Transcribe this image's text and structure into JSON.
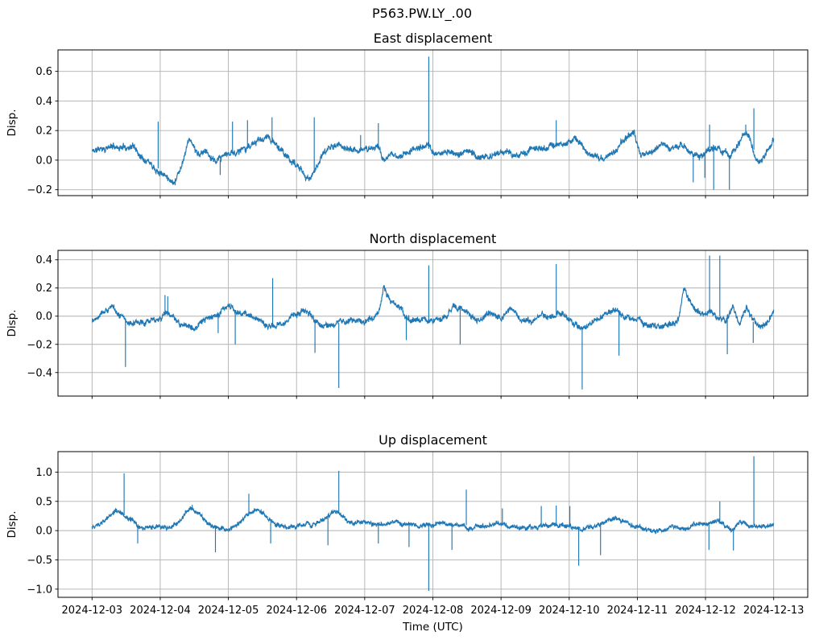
{
  "figure": {
    "title": "P563.PW.LY_.00",
    "background": "#ffffff"
  },
  "style": {
    "line_color": "#1f77b4",
    "grid_color": "#b0b0b0",
    "spine_color": "#000000",
    "text_color": "#000000"
  },
  "x_axis": {
    "label": "Time (UTC)",
    "tick_labels": [
      "2024-12-03",
      "2024-12-04",
      "2024-12-05",
      "2024-12-06",
      "2024-12-07",
      "2024-12-08",
      "2024-12-09",
      "2024-12-10",
      "2024-12-11",
      "2024-12-12",
      "2024-12-13"
    ],
    "tick_days": [
      3,
      4,
      5,
      6,
      7,
      8,
      9,
      10,
      11,
      12,
      13
    ],
    "xlim_days": [
      2.5,
      13.5
    ]
  },
  "chart_data": [
    {
      "type": "line",
      "title": "East displacement",
      "ylabel": "Disp.",
      "grid": true,
      "legend": null,
      "ytick_values": [
        -0.2,
        0.0,
        0.2,
        0.4,
        0.6
      ],
      "ytick_labels": [
        "−0.2",
        "0.0",
        "0.2",
        "0.4",
        "0.6"
      ],
      "ylim": [
        -0.24,
        0.745
      ],
      "noise_amp": 0.021,
      "seed": 11,
      "baseline": [
        [
          3.0,
          0.06
        ],
        [
          3.15,
          0.08
        ],
        [
          3.3,
          0.09
        ],
        [
          3.45,
          0.09
        ],
        [
          3.6,
          0.1
        ],
        [
          3.7,
          0.04
        ],
        [
          3.85,
          0.0
        ],
        [
          4.0,
          -0.07
        ],
        [
          4.2,
          -0.14
        ],
        [
          4.3,
          -0.05
        ],
        [
          4.42,
          0.15
        ],
        [
          4.5,
          0.08
        ],
        [
          4.58,
          0.02
        ],
        [
          4.66,
          0.07
        ],
        [
          4.82,
          -0.03
        ],
        [
          4.95,
          0.03
        ],
        [
          5.1,
          0.05
        ],
        [
          5.25,
          0.09
        ],
        [
          5.45,
          0.12
        ],
        [
          5.6,
          0.15
        ],
        [
          5.72,
          0.09
        ],
        [
          5.85,
          0.02
        ],
        [
          6.0,
          -0.04
        ],
        [
          6.2,
          -0.13
        ],
        [
          6.33,
          0.0
        ],
        [
          6.45,
          0.08
        ],
        [
          6.6,
          0.1
        ],
        [
          6.75,
          0.08
        ],
        [
          6.9,
          0.05
        ],
        [
          7.05,
          0.08
        ],
        [
          7.2,
          0.1
        ],
        [
          7.28,
          0.0
        ],
        [
          7.4,
          0.02
        ],
        [
          7.55,
          0.03
        ],
        [
          7.7,
          0.08
        ],
        [
          7.8,
          0.09
        ],
        [
          7.93,
          0.08
        ],
        [
          8.05,
          0.04
        ],
        [
          8.2,
          0.06
        ],
        [
          8.35,
          0.03
        ],
        [
          8.5,
          0.06
        ],
        [
          8.65,
          0.02
        ],
        [
          8.8,
          0.03
        ],
        [
          8.95,
          0.05
        ],
        [
          9.1,
          0.06
        ],
        [
          9.25,
          0.03
        ],
        [
          9.4,
          0.05
        ],
        [
          9.55,
          0.07
        ],
        [
          9.7,
          0.09
        ],
        [
          9.85,
          0.1
        ],
        [
          10.0,
          0.14
        ],
        [
          10.1,
          0.15
        ],
        [
          10.25,
          0.06
        ],
        [
          10.4,
          0.01
        ],
        [
          10.55,
          0.02
        ],
        [
          10.7,
          0.08
        ],
        [
          10.85,
          0.14
        ],
        [
          10.95,
          0.18
        ],
        [
          11.05,
          0.02
        ],
        [
          11.2,
          0.05
        ],
        [
          11.35,
          0.09
        ],
        [
          11.5,
          0.1
        ],
        [
          11.65,
          0.12
        ],
        [
          11.8,
          0.02
        ],
        [
          11.95,
          0.02
        ],
        [
          12.05,
          0.08
        ],
        [
          12.15,
          0.1
        ],
        [
          12.25,
          0.05
        ],
        [
          12.35,
          0.02
        ],
        [
          12.45,
          0.08
        ],
        [
          12.55,
          0.15
        ],
        [
          12.62,
          0.18
        ],
        [
          12.7,
          0.08
        ],
        [
          12.78,
          0.0
        ],
        [
          12.88,
          0.03
        ],
        [
          13.0,
          0.12
        ]
      ],
      "spikes": [
        [
          3.97,
          0.26
        ],
        [
          4.22,
          -0.17
        ],
        [
          4.88,
          -0.1
        ],
        [
          5.06,
          0.26
        ],
        [
          5.28,
          0.27
        ],
        [
          5.64,
          0.29
        ],
        [
          6.26,
          0.29
        ],
        [
          6.94,
          0.17
        ],
        [
          7.2,
          0.25
        ],
        [
          7.94,
          0.7
        ],
        [
          9.81,
          0.27
        ],
        [
          11.82,
          -0.15
        ],
        [
          11.99,
          -0.12
        ],
        [
          12.06,
          0.24
        ],
        [
          12.12,
          -0.2
        ],
        [
          12.35,
          -0.2
        ],
        [
          12.59,
          0.24
        ],
        [
          12.71,
          0.35
        ]
      ]
    },
    {
      "type": "line",
      "title": "North displacement",
      "ylabel": "Disp.",
      "grid": true,
      "legend": null,
      "ytick_values": [
        -0.4,
        -0.2,
        0.0,
        0.2,
        0.4
      ],
      "ytick_labels": [
        "−0.4",
        "−0.2",
        "0.0",
        "0.2",
        "0.4"
      ],
      "ylim": [
        -0.567,
        0.467
      ],
      "noise_amp": 0.021,
      "seed": 22,
      "baseline": [
        [
          3.0,
          -0.03
        ],
        [
          3.15,
          0.05
        ],
        [
          3.3,
          0.06
        ],
        [
          3.45,
          0.0
        ],
        [
          3.55,
          -0.04
        ],
        [
          3.7,
          -0.06
        ],
        [
          3.85,
          -0.02
        ],
        [
          4.0,
          0.0
        ],
        [
          4.1,
          0.02
        ],
        [
          4.3,
          -0.07
        ],
        [
          4.45,
          -0.08
        ],
        [
          4.6,
          -0.05
        ],
        [
          4.75,
          -0.02
        ],
        [
          4.9,
          0.04
        ],
        [
          5.05,
          0.05
        ],
        [
          5.2,
          0.03
        ],
        [
          5.35,
          0.0
        ],
        [
          5.5,
          -0.05
        ],
        [
          5.65,
          -0.07
        ],
        [
          5.8,
          -0.06
        ],
        [
          5.95,
          0.0
        ],
        [
          6.1,
          0.04
        ],
        [
          6.2,
          0.0
        ],
        [
          6.3,
          -0.05
        ],
        [
          6.45,
          -0.06
        ],
        [
          6.6,
          -0.05
        ],
        [
          6.75,
          -0.04
        ],
        [
          6.9,
          -0.03
        ],
        [
          7.05,
          -0.03
        ],
        [
          7.2,
          0.02
        ],
        [
          7.28,
          0.2
        ],
        [
          7.38,
          0.12
        ],
        [
          7.5,
          0.06
        ],
        [
          7.65,
          -0.01
        ],
        [
          7.8,
          -0.04
        ],
        [
          7.95,
          -0.05
        ],
        [
          8.1,
          -0.02
        ],
        [
          8.25,
          0.05
        ],
        [
          8.4,
          0.07
        ],
        [
          8.55,
          0.0
        ],
        [
          8.7,
          -0.04
        ],
        [
          8.85,
          0.03
        ],
        [
          9.0,
          -0.02
        ],
        [
          9.15,
          0.05
        ],
        [
          9.3,
          -0.03
        ],
        [
          9.45,
          -0.05
        ],
        [
          9.6,
          0.02
        ],
        [
          9.75,
          0.0
        ],
        [
          9.9,
          0.02
        ],
        [
          10.05,
          -0.04
        ],
        [
          10.2,
          -0.08
        ],
        [
          10.35,
          -0.05
        ],
        [
          10.5,
          0.0
        ],
        [
          10.65,
          0.04
        ],
        [
          10.8,
          0.02
        ],
        [
          10.95,
          -0.02
        ],
        [
          11.1,
          -0.05
        ],
        [
          11.25,
          -0.08
        ],
        [
          11.4,
          -0.07
        ],
        [
          11.55,
          -0.03
        ],
        [
          11.62,
          0.03
        ],
        [
          11.68,
          0.2
        ],
        [
          11.78,
          0.1
        ],
        [
          11.88,
          0.02
        ],
        [
          12.0,
          0.0
        ],
        [
          12.1,
          0.03
        ],
        [
          12.2,
          0.0
        ],
        [
          12.3,
          -0.02
        ],
        [
          12.4,
          0.06
        ],
        [
          12.5,
          -0.07
        ],
        [
          12.6,
          0.08
        ],
        [
          12.7,
          -0.04
        ],
        [
          12.8,
          -0.07
        ],
        [
          12.9,
          -0.05
        ],
        [
          13.0,
          0.04
        ]
      ],
      "spikes": [
        [
          3.49,
          -0.36
        ],
        [
          4.07,
          0.15
        ],
        [
          4.11,
          0.14
        ],
        [
          4.85,
          -0.12
        ],
        [
          5.1,
          -0.2
        ],
        [
          5.65,
          0.27
        ],
        [
          6.27,
          -0.26
        ],
        [
          6.62,
          -0.51
        ],
        [
          7.61,
          -0.17
        ],
        [
          7.94,
          0.36
        ],
        [
          8.4,
          -0.2
        ],
        [
          9.81,
          0.37
        ],
        [
          10.19,
          -0.52
        ],
        [
          10.73,
          -0.28
        ],
        [
          12.06,
          0.43
        ],
        [
          12.21,
          0.43
        ],
        [
          12.32,
          -0.27
        ],
        [
          12.7,
          -0.19
        ]
      ]
    },
    {
      "type": "line",
      "title": "Up displacement",
      "ylabel": "Disp.",
      "grid": true,
      "legend": null,
      "ytick_values": [
        -1.0,
        -0.5,
        0.0,
        0.5,
        1.0
      ],
      "ytick_labels": [
        "−1.0",
        "−0.5",
        "0.0",
        "0.5",
        "1.0"
      ],
      "ylim": [
        -1.14,
        1.35
      ],
      "noise_amp": 0.038,
      "seed": 33,
      "baseline": [
        [
          3.0,
          0.05
        ],
        [
          3.1,
          0.08
        ],
        [
          3.2,
          0.18
        ],
        [
          3.35,
          0.35
        ],
        [
          3.45,
          0.28
        ],
        [
          3.55,
          0.18
        ],
        [
          3.7,
          0.06
        ],
        [
          3.85,
          0.02
        ],
        [
          4.0,
          0.03
        ],
        [
          4.15,
          0.05
        ],
        [
          4.3,
          0.2
        ],
        [
          4.45,
          0.37
        ],
        [
          4.55,
          0.28
        ],
        [
          4.7,
          0.12
        ],
        [
          4.85,
          0.04
        ],
        [
          5.0,
          0.03
        ],
        [
          5.15,
          0.08
        ],
        [
          5.3,
          0.3
        ],
        [
          5.4,
          0.37
        ],
        [
          5.55,
          0.25
        ],
        [
          5.7,
          0.12
        ],
        [
          5.85,
          0.06
        ],
        [
          6.0,
          0.08
        ],
        [
          6.15,
          0.1
        ],
        [
          6.3,
          0.12
        ],
        [
          6.45,
          0.22
        ],
        [
          6.6,
          0.32
        ],
        [
          6.7,
          0.25
        ],
        [
          6.85,
          0.12
        ],
        [
          7.0,
          0.12
        ],
        [
          7.15,
          0.08
        ],
        [
          7.3,
          0.12
        ],
        [
          7.4,
          0.15
        ],
        [
          7.55,
          0.1
        ],
        [
          7.7,
          0.12
        ],
        [
          7.85,
          0.08
        ],
        [
          8.0,
          0.1
        ],
        [
          8.15,
          0.13
        ],
        [
          8.3,
          0.12
        ],
        [
          8.45,
          0.1
        ],
        [
          8.6,
          0.07
        ],
        [
          8.75,
          0.05
        ],
        [
          8.9,
          0.11
        ],
        [
          9.05,
          0.09
        ],
        [
          9.2,
          0.04
        ],
        [
          9.35,
          0.03
        ],
        [
          9.5,
          0.08
        ],
        [
          9.65,
          0.1
        ],
        [
          9.8,
          0.08
        ],
        [
          9.95,
          0.09
        ],
        [
          10.1,
          0.05
        ],
        [
          10.25,
          0.06
        ],
        [
          10.4,
          0.09
        ],
        [
          10.55,
          0.14
        ],
        [
          10.7,
          0.21
        ],
        [
          10.8,
          0.18
        ],
        [
          10.95,
          0.08
        ],
        [
          11.1,
          0.02
        ],
        [
          11.25,
          -0.02
        ],
        [
          11.4,
          0.02
        ],
        [
          11.55,
          0.06
        ],
        [
          11.7,
          0.05
        ],
        [
          11.85,
          0.1
        ],
        [
          12.0,
          0.1
        ],
        [
          12.1,
          0.15
        ],
        [
          12.2,
          0.18
        ],
        [
          12.3,
          0.02
        ],
        [
          12.4,
          0.0
        ],
        [
          12.5,
          0.1
        ],
        [
          12.6,
          0.1
        ],
        [
          12.7,
          0.1
        ],
        [
          12.8,
          0.06
        ],
        [
          12.9,
          0.05
        ],
        [
          13.0,
          0.05
        ]
      ],
      "spikes": [
        [
          3.47,
          0.98
        ],
        [
          3.67,
          -0.22
        ],
        [
          4.47,
          0.44
        ],
        [
          4.81,
          -0.37
        ],
        [
          5.3,
          0.63
        ],
        [
          5.62,
          -0.22
        ],
        [
          6.46,
          -0.25
        ],
        [
          6.62,
          1.02
        ],
        [
          7.2,
          -0.22
        ],
        [
          7.65,
          -0.28
        ],
        [
          7.94,
          -1.03
        ],
        [
          8.28,
          -0.33
        ],
        [
          8.49,
          0.7
        ],
        [
          9.02,
          0.38
        ],
        [
          9.59,
          0.42
        ],
        [
          9.81,
          0.43
        ],
        [
          10.01,
          0.42
        ],
        [
          10.14,
          -0.6
        ],
        [
          10.46,
          -0.42
        ],
        [
          12.05,
          -0.33
        ],
        [
          12.21,
          0.5
        ],
        [
          12.41,
          -0.34
        ],
        [
          12.71,
          1.27
        ]
      ]
    }
  ]
}
